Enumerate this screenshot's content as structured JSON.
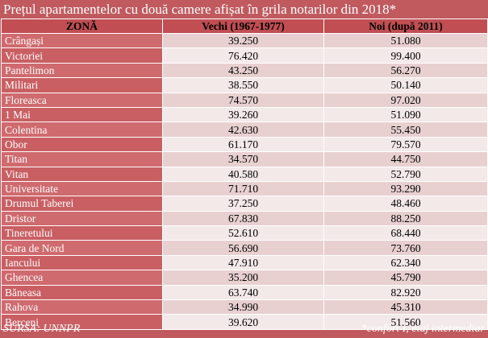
{
  "title": "Prețul apartamentelor cu două camere afișat în grila notarilor din 2018*",
  "columns": [
    "ZONĂ",
    "Vechi (1967-1977)",
    "Noi (după 2011)"
  ],
  "rows": [
    [
      "Crângași",
      "39.250",
      "51.080"
    ],
    [
      "Victoriei",
      "76.420",
      "99.400"
    ],
    [
      "Pantelimon",
      "43.250",
      "56.270"
    ],
    [
      "Militari",
      "38.550",
      "50.140"
    ],
    [
      "Floreasca",
      "74.570",
      "97.020"
    ],
    [
      "1 Mai",
      "39.260",
      "51.090"
    ],
    [
      "Colentina",
      "42.630",
      "55.450"
    ],
    [
      "Obor",
      "61.170",
      "79.570"
    ],
    [
      "Titan",
      "34.570",
      "44.750"
    ],
    [
      "Vitan",
      "40.580",
      "52.790"
    ],
    [
      "Universitate",
      "71.710",
      "93.290"
    ],
    [
      "Drumul Taberei",
      "37.250",
      "48.460"
    ],
    [
      "Dristor",
      "67.830",
      "88.250"
    ],
    [
      "Tineretului",
      "52.610",
      "68.440"
    ],
    [
      "Gara de Nord",
      "56.690",
      "73.760"
    ],
    [
      "Iancului",
      "47.910",
      "62.340"
    ],
    [
      "Ghencea",
      "35.200",
      "45.790"
    ],
    [
      "Băneasa",
      "63.740",
      "82.920"
    ],
    [
      "Rahova",
      "34.990",
      "45.310"
    ],
    [
      "Berceni",
      "39.620",
      "51.560"
    ]
  ],
  "footer": {
    "source": "SURSA: UNNPR",
    "note": "*confort I, etaj intermediar"
  }
}
